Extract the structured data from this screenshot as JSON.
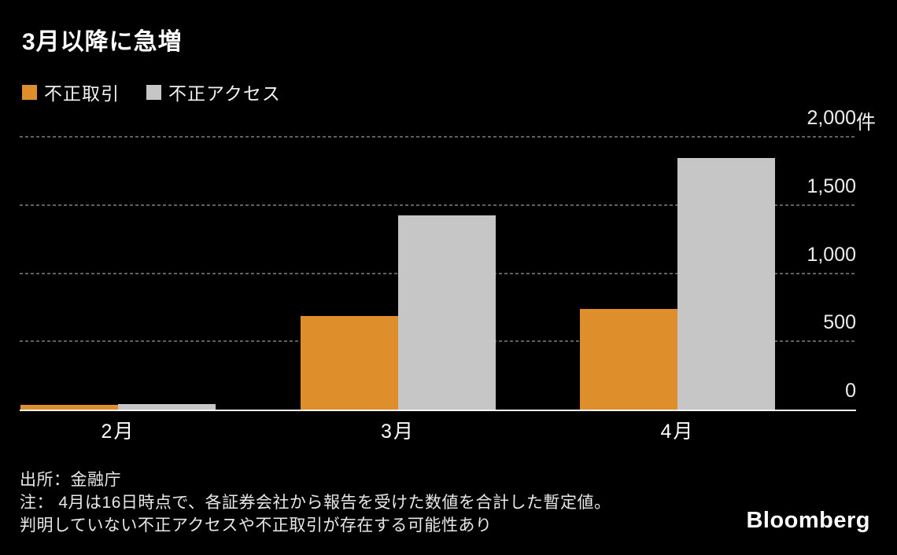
{
  "title": "3月以降に急増",
  "chart_data": {
    "type": "bar",
    "categories": [
      "2月",
      "3月",
      "4月"
    ],
    "series": [
      {
        "name": "不正取引",
        "color": "#DE8E2B",
        "values": [
          33,
          685,
          736
        ]
      },
      {
        "name": "不正アクセス",
        "color": "#C6C6C6",
        "values": [
          43,
          1422,
          1847
        ]
      }
    ],
    "title": "3月以降に急増",
    "xlabel": "",
    "ylabel": "",
    "ylim": [
      0,
      2000
    ],
    "yticks": [
      0,
      500,
      1000,
      1500,
      2000
    ],
    "ytick_labels": [
      "0",
      "500",
      "1,000",
      "1,500",
      "2,000件"
    ],
    "unit_suffix": "件",
    "grid": "horizontal-dotted",
    "legend_position": "top-left",
    "axis_side": "right"
  },
  "colors": {
    "background": "#000000",
    "bar_orange": "#DE8E2B",
    "bar_gray": "#C6C6C6",
    "gridline": "#5F5F5F",
    "baseline": "#F5F5F5",
    "text": "#FFFFFF"
  },
  "notes": {
    "source": "出所：金融庁",
    "note_line1": "注： 4月は16日時点で、各証券会社から報告を受けた数値を合計した暫定値。",
    "note_line2": "判明していない不正アクセスや不正取引が存在する可能性あり"
  },
  "branding": {
    "logo": "Bloomberg"
  }
}
